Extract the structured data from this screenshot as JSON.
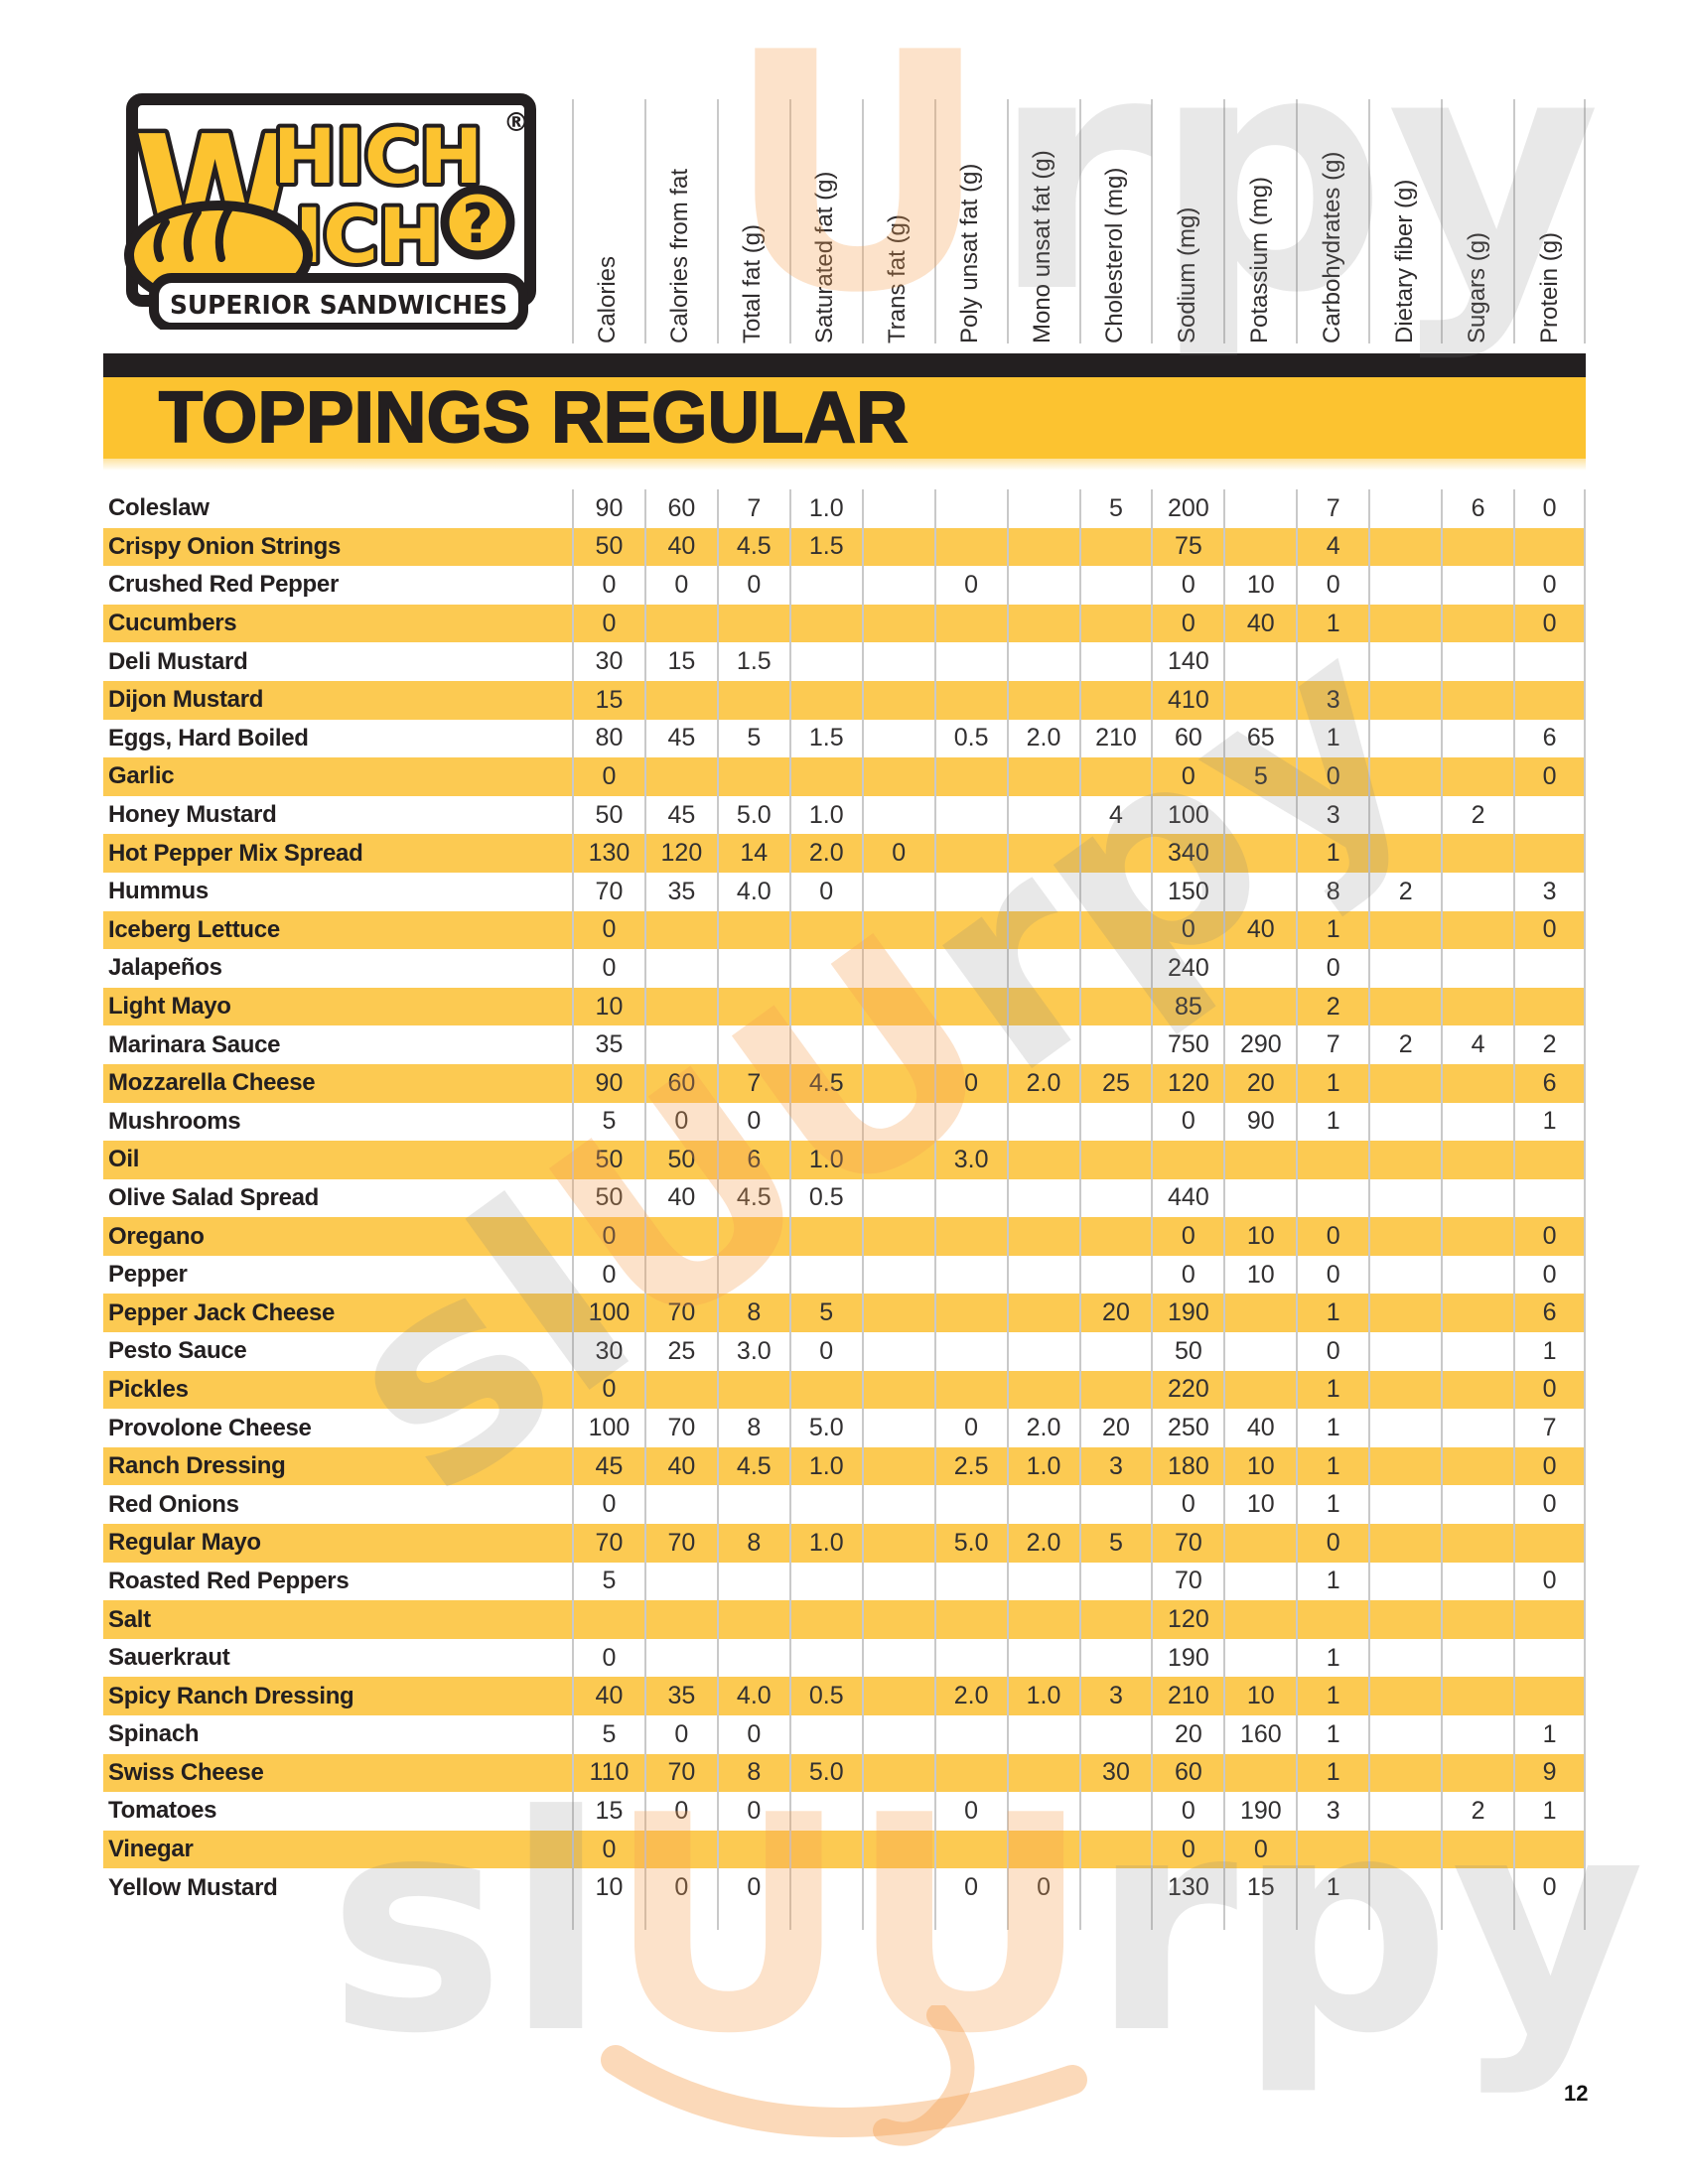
{
  "brand": {
    "w_large": "W",
    "top_rest": "HICH",
    "bottom_rest": "ICH",
    "question_mark": "?",
    "registered_mark": "®",
    "tagline": "SUPERIOR SANDWICHES"
  },
  "colors": {
    "brand_yellow": "#FCC330",
    "row_yellow": "#FCCA52",
    "ink_black": "#231F20",
    "grid_line_gray": "#C9C9C9",
    "watermark_peach": "#F6A050",
    "watermark_gray": "#828282"
  },
  "watermarks": {
    "text": "slUUrpy",
    "part_sl": "sl",
    "part_u": "U",
    "part_uu": "UU",
    "part_rpy": "rpy"
  },
  "page_number": "12",
  "table": {
    "title": "TOPPINGS REGULAR",
    "columns": [
      "Calories",
      "Calories from fat",
      "Total fat (g)",
      "Saturated fat (g)",
      "Trans fat (g)",
      "Poly unsat fat (g)",
      "Mono unsat fat (g)",
      "Cholesterol (mg)",
      "Sodium (mg)",
      "Potassium (mg)",
      "Carbohydrates (g)",
      "Dietary fiber (g)",
      "Sugars (g)",
      "Protein (g)"
    ],
    "rows": [
      {
        "name": "Coleslaw",
        "values": [
          "90",
          "60",
          "7",
          "1.0",
          "",
          "",
          "",
          "5",
          "200",
          "",
          "7",
          "",
          "6",
          "0"
        ]
      },
      {
        "name": "Crispy Onion Strings",
        "values": [
          "50",
          "40",
          "4.5",
          "1.5",
          "",
          "",
          "",
          "",
          "75",
          "",
          "4",
          "",
          "",
          ""
        ]
      },
      {
        "name": "Crushed Red Pepper",
        "values": [
          "0",
          "0",
          "0",
          "",
          "",
          "0",
          "",
          "",
          "0",
          "10",
          "0",
          "",
          "",
          "0"
        ]
      },
      {
        "name": "Cucumbers",
        "values": [
          "0",
          "",
          "",
          "",
          "",
          "",
          "",
          "",
          "0",
          "40",
          "1",
          "",
          "",
          "0"
        ]
      },
      {
        "name": "Deli Mustard",
        "values": [
          "30",
          "15",
          "1.5",
          "",
          "",
          "",
          "",
          "",
          "140",
          "",
          "",
          "",
          "",
          ""
        ]
      },
      {
        "name": "Dijon Mustard",
        "values": [
          "15",
          "",
          "",
          "",
          "",
          "",
          "",
          "",
          "410",
          "",
          "3",
          "",
          "",
          ""
        ]
      },
      {
        "name": "Eggs, Hard Boiled",
        "values": [
          "80",
          "45",
          "5",
          "1.5",
          "",
          "0.5",
          "2.0",
          "210",
          "60",
          "65",
          "1",
          "",
          "",
          "6"
        ]
      },
      {
        "name": "Garlic",
        "values": [
          "0",
          "",
          "",
          "",
          "",
          "",
          "",
          "",
          "0",
          "5",
          "0",
          "",
          "",
          "0"
        ]
      },
      {
        "name": "Honey Mustard",
        "values": [
          "50",
          "45",
          "5.0",
          "1.0",
          "",
          "",
          "",
          "4",
          "100",
          "",
          "3",
          "",
          "2",
          ""
        ]
      },
      {
        "name": "Hot Pepper Mix Spread",
        "values": [
          "130",
          "120",
          "14",
          "2.0",
          "0",
          "",
          "",
          "",
          "340",
          "",
          "1",
          "",
          "",
          ""
        ]
      },
      {
        "name": "Hummus",
        "values": [
          "70",
          "35",
          "4.0",
          "0",
          "",
          "",
          "",
          "",
          "150",
          "",
          "8",
          "2",
          "",
          "3"
        ]
      },
      {
        "name": "Iceberg Lettuce",
        "values": [
          "0",
          "",
          "",
          "",
          "",
          "",
          "",
          "",
          "0",
          "40",
          "1",
          "",
          "",
          "0"
        ]
      },
      {
        "name": "Jalapeños",
        "values": [
          "0",
          "",
          "",
          "",
          "",
          "",
          "",
          "",
          "240",
          "",
          "0",
          "",
          "",
          ""
        ]
      },
      {
        "name": "Light Mayo",
        "values": [
          "10",
          "",
          "",
          "",
          "",
          "",
          "",
          "",
          "85",
          "",
          "2",
          "",
          "",
          ""
        ]
      },
      {
        "name": "Marinara Sauce",
        "values": [
          "35",
          "",
          "",
          "",
          "",
          "",
          "",
          "",
          "750",
          "290",
          "7",
          "2",
          "4",
          "2"
        ]
      },
      {
        "name": "Mozzarella Cheese",
        "values": [
          "90",
          "60",
          "7",
          "4.5",
          "",
          "0",
          "2.0",
          "25",
          "120",
          "20",
          "1",
          "",
          "",
          "6"
        ]
      },
      {
        "name": "Mushrooms",
        "values": [
          "5",
          "0",
          "0",
          "",
          "",
          "",
          "",
          "",
          "0",
          "90",
          "1",
          "",
          "",
          "1"
        ]
      },
      {
        "name": "Oil",
        "values": [
          "50",
          "50",
          "6",
          "1.0",
          "",
          "3.0",
          "",
          "",
          "",
          "",
          "",
          "",
          "",
          ""
        ]
      },
      {
        "name": "Olive Salad Spread",
        "values": [
          "50",
          "40",
          "4.5",
          "0.5",
          "",
          "",
          "",
          "",
          "440",
          "",
          "",
          "",
          "",
          ""
        ]
      },
      {
        "name": "Oregano",
        "values": [
          "0",
          "",
          "",
          "",
          "",
          "",
          "",
          "",
          "0",
          "10",
          "0",
          "",
          "",
          "0"
        ]
      },
      {
        "name": "Pepper",
        "values": [
          "0",
          "",
          "",
          "",
          "",
          "",
          "",
          "",
          "0",
          "10",
          "0",
          "",
          "",
          "0"
        ]
      },
      {
        "name": "Pepper Jack Cheese",
        "values": [
          "100",
          "70",
          "8",
          "5",
          "",
          "",
          "",
          "20",
          "190",
          "",
          "1",
          "",
          "",
          "6"
        ]
      },
      {
        "name": "Pesto Sauce",
        "values": [
          "30",
          "25",
          "3.0",
          "0",
          "",
          "",
          "",
          "",
          "50",
          "",
          "0",
          "",
          "",
          "1"
        ]
      },
      {
        "name": "Pickles",
        "values": [
          "0",
          "",
          "",
          "",
          "",
          "",
          "",
          "",
          "220",
          "",
          "1",
          "",
          "",
          "0"
        ]
      },
      {
        "name": "Provolone Cheese",
        "values": [
          "100",
          "70",
          "8",
          "5.0",
          "",
          "0",
          "2.0",
          "20",
          "250",
          "40",
          "1",
          "",
          "",
          "7"
        ]
      },
      {
        "name": "Ranch Dressing",
        "values": [
          "45",
          "40",
          "4.5",
          "1.0",
          "",
          "2.5",
          "1.0",
          "3",
          "180",
          "10",
          "1",
          "",
          "",
          "0"
        ]
      },
      {
        "name": "Red Onions",
        "values": [
          "0",
          "",
          "",
          "",
          "",
          "",
          "",
          "",
          "0",
          "10",
          "1",
          "",
          "",
          "0"
        ]
      },
      {
        "name": "Regular Mayo",
        "values": [
          "70",
          "70",
          "8",
          "1.0",
          "",
          "5.0",
          "2.0",
          "5",
          "70",
          "",
          "0",
          "",
          "",
          ""
        ]
      },
      {
        "name": "Roasted Red Peppers",
        "values": [
          "5",
          "",
          "",
          "",
          "",
          "",
          "",
          "",
          "70",
          "",
          "1",
          "",
          "",
          "0"
        ]
      },
      {
        "name": "Salt",
        "values": [
          "",
          "",
          "",
          "",
          "",
          "",
          "",
          "",
          "120",
          "",
          "",
          "",
          "",
          ""
        ]
      },
      {
        "name": "Sauerkraut",
        "values": [
          "0",
          "",
          "",
          "",
          "",
          "",
          "",
          "",
          "190",
          "",
          "1",
          "",
          "",
          ""
        ]
      },
      {
        "name": "Spicy Ranch Dressing",
        "values": [
          "40",
          "35",
          "4.0",
          "0.5",
          "",
          "2.0",
          "1.0",
          "3",
          "210",
          "10",
          "1",
          "",
          "",
          ""
        ]
      },
      {
        "name": "Spinach",
        "values": [
          "5",
          "0",
          "0",
          "",
          "",
          "",
          "",
          "",
          "20",
          "160",
          "1",
          "",
          "",
          "1"
        ]
      },
      {
        "name": "Swiss Cheese",
        "values": [
          "110",
          "70",
          "8",
          "5.0",
          "",
          "",
          "",
          "30",
          "60",
          "",
          "1",
          "",
          "",
          "9"
        ]
      },
      {
        "name": "Tomatoes",
        "values": [
          "15",
          "0",
          "0",
          "",
          "",
          "0",
          "",
          "",
          "0",
          "190",
          "3",
          "",
          "2",
          "1"
        ]
      },
      {
        "name": "Vinegar",
        "values": [
          "0",
          "",
          "",
          "",
          "",
          "",
          "",
          "",
          "0",
          "0",
          "",
          "",
          "",
          ""
        ]
      },
      {
        "name": "Yellow Mustard",
        "values": [
          "10",
          "0",
          "0",
          "",
          "",
          "0",
          "0",
          "",
          "130",
          "15",
          "1",
          "",
          "",
          "0"
        ]
      }
    ]
  }
}
